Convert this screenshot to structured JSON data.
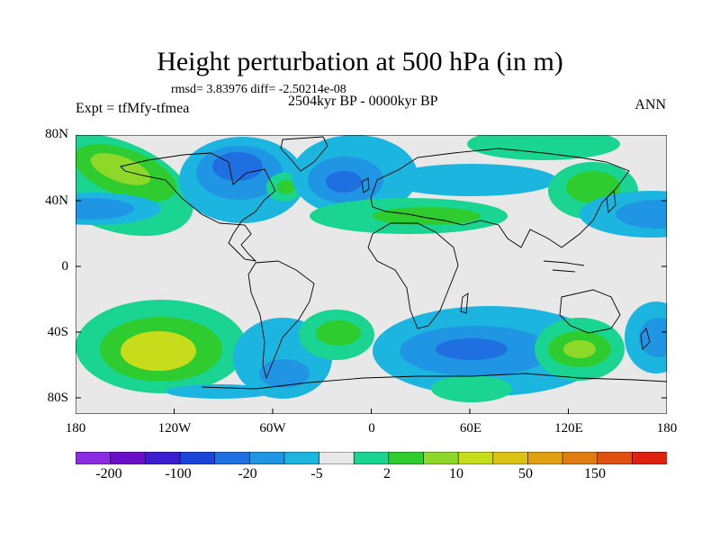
{
  "title": "Height perturbation at 500 hPa (in m)",
  "stats": "rmsd= 3.83976 diff= -2.50214e-08",
  "period": "2504kyr BP - 0000kyr BP",
  "experiment": "Expt = tfMfy-tfmea",
  "season": "ANN",
  "lat_labels": [
    "80N",
    "40N",
    "0",
    "40S",
    "80S"
  ],
  "lon_labels": [
    "180",
    "120W",
    "60W",
    "0",
    "60E",
    "120E",
    "180"
  ],
  "colorbar": {
    "colors": [
      "#8a2be2",
      "#6a0dc8",
      "#3a1ed0",
      "#1a45d8",
      "#1f6fe0",
      "#1f95e4",
      "#1bb5e0",
      "#e8e8e8",
      "#1ad491",
      "#2ecc2e",
      "#8ed82a",
      "#c7dc1a",
      "#dcc214",
      "#e0a010",
      "#e07c10",
      "#e05010",
      "#e02010"
    ],
    "labels": [
      "-200",
      "-100",
      "-20",
      "-5",
      "2",
      "10",
      "50",
      "150"
    ]
  },
  "palette": {
    "background_land_sea": "#e8e8e8",
    "cyan": "#1bb5e0",
    "light_blue": "#1f95e4",
    "blue": "#1f6fe0",
    "green": "#1ad491",
    "bright_green": "#2ecc2e",
    "yellow_green": "#c7dc1a"
  }
}
